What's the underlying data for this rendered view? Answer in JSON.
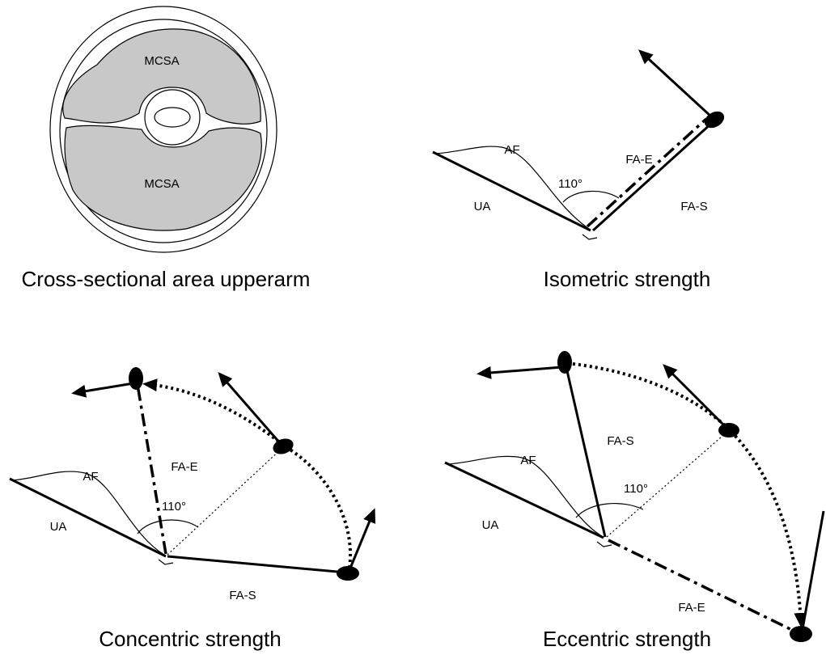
{
  "panels": [
    {
      "caption": "Cross-sectional area upperarm",
      "labels": [
        "MCSA",
        "MCSA"
      ]
    },
    {
      "caption": "Isometric strength",
      "labels": [
        "AF",
        "FA-E",
        "110°",
        "UA",
        "FA-S"
      ]
    },
    {
      "caption": "Concentric strength",
      "labels": [
        "AF",
        "FA-E",
        "110°",
        "UA",
        "FA-S"
      ]
    },
    {
      "caption": "Eccentric strength",
      "labels": [
        "AF",
        "FA-S",
        "110°",
        "UA",
        "FA-E"
      ]
    }
  ]
}
